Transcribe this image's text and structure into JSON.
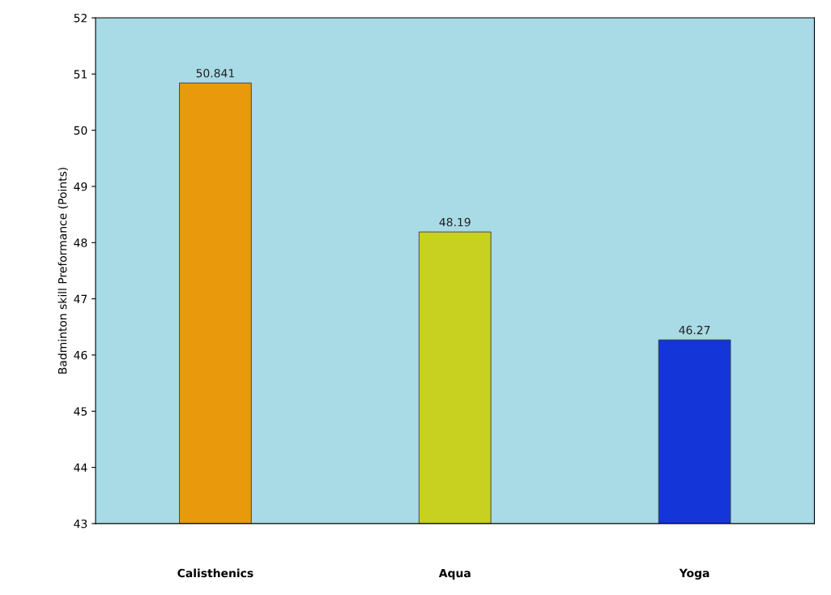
{
  "chart_data": {
    "type": "bar",
    "ylabel": "Badminton skill Preformance (Points)",
    "categories": [
      "Calisthenics",
      "Aqua",
      "Yoga"
    ],
    "values": [
      50.841,
      48.19,
      46.27
    ],
    "colors": [
      "#e89a0c",
      "#c8d020",
      "#1436d8"
    ],
    "ylim": [
      43,
      52
    ],
    "yticks": [
      43,
      44,
      45,
      46,
      47,
      48,
      49,
      50,
      51,
      52
    ],
    "data_labels": true,
    "grid": false,
    "legend": false
  }
}
